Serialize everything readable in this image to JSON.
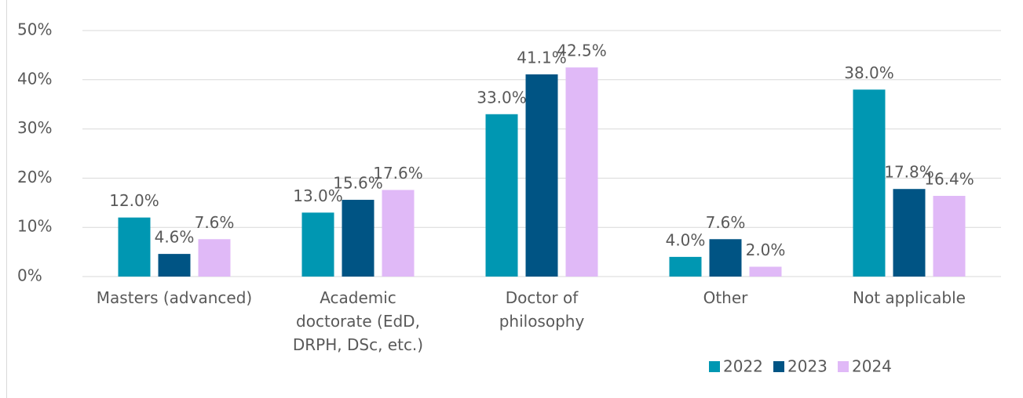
{
  "chart_data": {
    "type": "bar",
    "categories": [
      "Masters (advanced)",
      "Academic doctorate (EdD, DRPH, DSc, etc.)",
      "Doctor of philosophy",
      "Other",
      "Not applicable"
    ],
    "series": [
      {
        "name": "2022",
        "color": "#0097b2",
        "values": [
          12.0,
          13.0,
          33.0,
          4.0,
          38.0
        ],
        "value_labels": [
          "12.0%",
          "13.0%",
          "33.0%",
          "4.0%",
          "38.0%"
        ]
      },
      {
        "name": "2023",
        "color": "#005484",
        "values": [
          4.6,
          15.6,
          41.1,
          7.6,
          17.8
        ],
        "value_labels": [
          "4.6%",
          "15.6%",
          "41.1%",
          "7.6%",
          "17.8%"
        ]
      },
      {
        "name": "2024",
        "color": "#e0b9f7",
        "values": [
          7.6,
          17.6,
          42.5,
          2.0,
          16.4
        ],
        "value_labels": [
          "7.6%",
          "17.6%",
          "42.5%",
          "2.0%",
          "16.4%"
        ]
      }
    ],
    "ylim": [
      0,
      50
    ],
    "yticks": [
      {
        "value": 0,
        "label": "0%"
      },
      {
        "value": 10,
        "label": "10%"
      },
      {
        "value": 20,
        "label": "20%"
      },
      {
        "value": 30,
        "label": "30%"
      },
      {
        "value": 40,
        "label": "40%"
      },
      {
        "value": 50,
        "label": "50%"
      }
    ],
    "grid": true,
    "legend": "bottom-right"
  }
}
